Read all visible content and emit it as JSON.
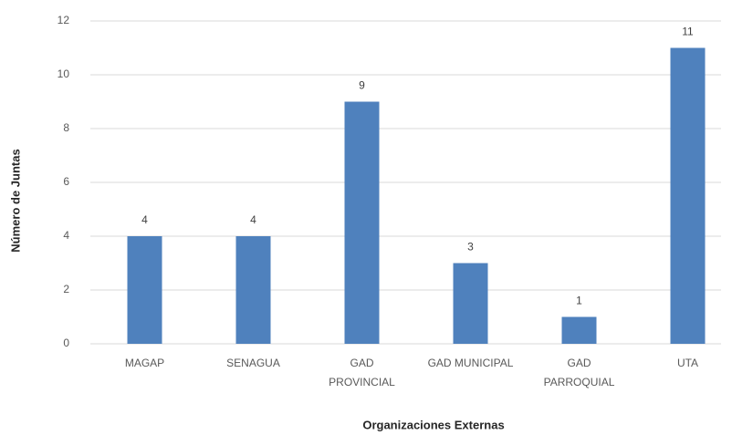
{
  "chart_data": {
    "type": "bar",
    "x_label": "Organizaciones Externas",
    "y_label": "Número de Juntas",
    "categories": [
      [
        "MAGAP"
      ],
      [
        "SENAGUA"
      ],
      [
        "GAD",
        "PROVINCIAL"
      ],
      [
        "GAD MUNICIPAL"
      ],
      [
        "GAD",
        "PARROQUIAL"
      ],
      [
        "UTA"
      ]
    ],
    "values": [
      4,
      4,
      9,
      3,
      1,
      11
    ],
    "color": "#4f81bd",
    "ylim": [
      0,
      12
    ],
    "yticks": [
      0,
      2,
      4,
      6,
      8,
      10,
      12
    ],
    "grid": true
  }
}
